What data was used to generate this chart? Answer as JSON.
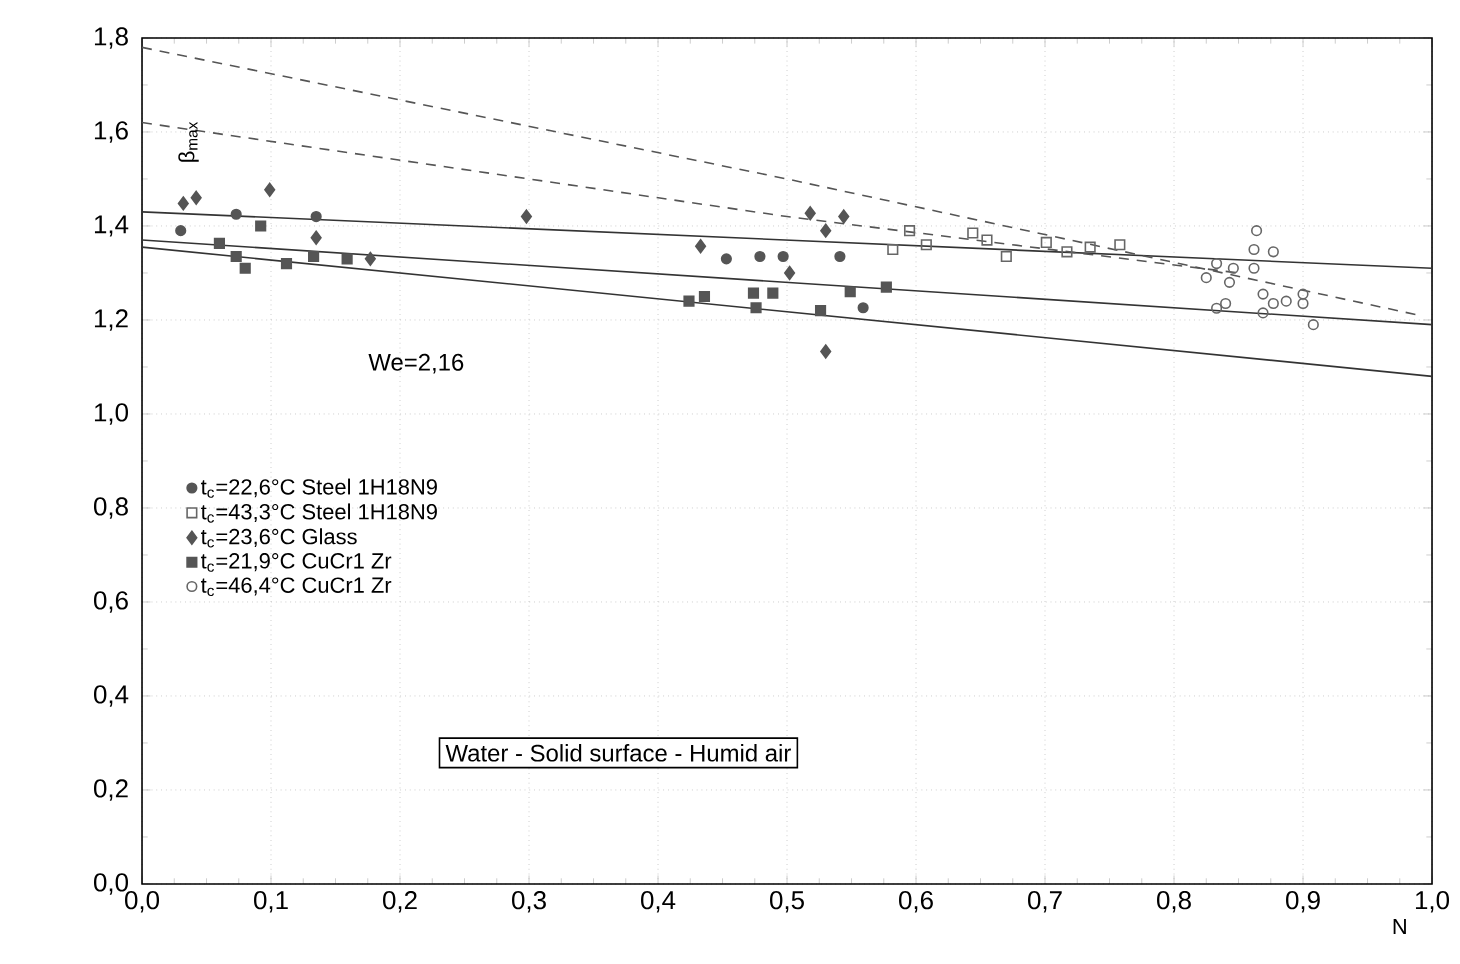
{
  "chart_data": {
    "type": "scatter",
    "xlabel": "N",
    "ylabel": "β$_{max}$",
    "xlim": [
      0,
      1
    ],
    "ylim": [
      0,
      1.8
    ],
    "xticks": [
      {
        "value": 0,
        "label": "0,0"
      },
      {
        "value": 0.1,
        "label": "0,1"
      },
      {
        "value": 0.2,
        "label": "0,2"
      },
      {
        "value": 0.3,
        "label": "0,3"
      },
      {
        "value": 0.4,
        "label": "0,4"
      },
      {
        "value": 0.5,
        "label": "0,5"
      },
      {
        "value": 0.6,
        "label": "0,6"
      },
      {
        "value": 0.7,
        "label": "0,7"
      },
      {
        "value": 0.8,
        "label": "0,8"
      },
      {
        "value": 0.9,
        "label": "0,9"
      },
      {
        "value": 1,
        "label": "1,0"
      }
    ],
    "yticks": [
      {
        "value": 0,
        "label": "0,0"
      },
      {
        "value": 0.2,
        "label": "0,2"
      },
      {
        "value": 0.4,
        "label": "0,4"
      },
      {
        "value": 0.6,
        "label": "0,6"
      },
      {
        "value": 0.8,
        "label": "0,8"
      },
      {
        "value": 1,
        "label": "1,0"
      },
      {
        "value": 1.2,
        "label": "1,2"
      },
      {
        "value": 1.4,
        "label": "1,4"
      },
      {
        "value": 1.6,
        "label": "1,6"
      },
      {
        "value": 1.8,
        "label": "1,8"
      }
    ],
    "grid": true,
    "legend": "left",
    "annotations": [
      "We=2,16",
      "Water - Solid surface - Humid air"
    ],
    "series": [
      {
        "name": "t$_{c}$=22,6°C Steel 1H18N9",
        "marker": "circle",
        "color": "#555555",
        "x": [
          0.03,
          0.073,
          0.135,
          0.453,
          0.479,
          0.497,
          0.541,
          0.559
        ],
        "values": [
          1.39,
          1.425,
          1.42,
          1.33,
          1.335,
          1.335,
          1.335,
          1.226
        ]
      },
      {
        "name": "t$_{c}$=43,3°C Steel 1H18N9",
        "marker": "square",
        "color": "#666666",
        "x": [
          0.582,
          0.595,
          0.608,
          0.644,
          0.655,
          0.67,
          0.701,
          0.717,
          0.735,
          0.758
        ],
        "values": [
          1.35,
          1.39,
          1.36,
          1.385,
          1.37,
          1.335,
          1.365,
          1.345,
          1.355,
          1.36
        ]
      },
      {
        "name": "t$_{c}$=23,6°C Glass",
        "marker": "diamond",
        "color": "#555555",
        "x": [
          0.032,
          0.042,
          0.099,
          0.135,
          0.177,
          0.298,
          0.433,
          0.502,
          0.518,
          0.53,
          0.544,
          0.53
        ],
        "values": [
          1.448,
          1.46,
          1.477,
          1.375,
          1.33,
          1.42,
          1.357,
          1.3,
          1.427,
          1.39,
          1.42,
          1.133
        ]
      },
      {
        "name": "t$_{c}$=21,9°C CuCr1 Zr",
        "marker": "square",
        "color": "#555555",
        "x": [
          0.06,
          0.073,
          0.08,
          0.092,
          0.112,
          0.133,
          0.159,
          0.424,
          0.436,
          0.474,
          0.476,
          0.489,
          0.526,
          0.549,
          0.577
        ],
        "values": [
          1.363,
          1.335,
          1.31,
          1.4,
          1.32,
          1.335,
          1.33,
          1.24,
          1.25,
          1.257,
          1.226,
          1.257,
          1.22,
          1.26,
          1.27
        ]
      },
      {
        "name": "t$_{c}$=46,4°C CuCr1 Zr",
        "marker": "circle",
        "color": "#666666",
        "x": [
          0.825,
          0.833,
          0.833,
          0.84,
          0.843,
          0.846,
          0.862,
          0.862,
          0.864,
          0.869,
          0.869,
          0.877,
          0.877,
          0.887,
          0.9,
          0.9,
          0.908
        ],
        "values": [
          1.29,
          1.32,
          1.225,
          1.235,
          1.28,
          1.31,
          1.35,
          1.31,
          1.39,
          1.255,
          1.215,
          1.345,
          1.235,
          1.24,
          1.255,
          1.235,
          1.19
        ]
      },
      {
        "type": "line",
        "line_style": "solid",
        "color": "#333333",
        "x": [
          0,
          1
        ],
        "values": [
          1.43,
          1.31
        ]
      },
      {
        "type": "line",
        "line_style": "solid",
        "color": "#333333",
        "x": [
          0,
          1
        ],
        "values": [
          1.37,
          1.19
        ]
      },
      {
        "type": "line",
        "line_style": "solid",
        "color": "#333333",
        "x": [
          0,
          1
        ],
        "values": [
          1.355,
          1.08
        ]
      },
      {
        "type": "line",
        "line_style": "dashed",
        "color": "#555555",
        "x": [
          0,
          0.5,
          0.99
        ],
        "values": [
          1.78,
          1.5,
          1.21
        ]
      },
      {
        "type": "line",
        "line_style": "dashed",
        "color": "#555555",
        "x": [
          0,
          0.5,
          0.85
        ],
        "values": [
          1.62,
          1.42,
          1.3
        ]
      }
    ]
  }
}
